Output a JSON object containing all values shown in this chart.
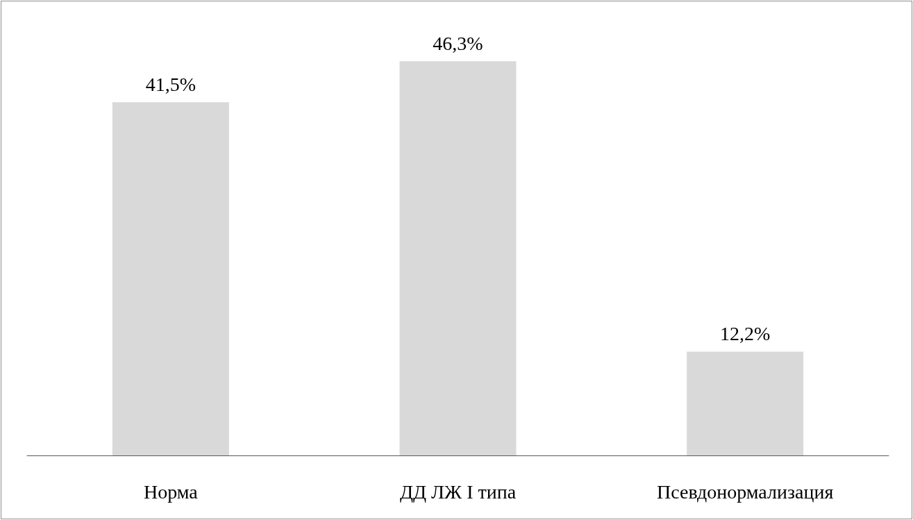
{
  "chart_data": {
    "type": "bar",
    "categories": [
      "Норма",
      "ДД ЛЖ I типа",
      "Псевдонормализация"
    ],
    "values": [
      41.5,
      46.3,
      12.2
    ],
    "value_labels": [
      "41,5%",
      "46,3%",
      "12,2%"
    ],
    "color": "#d9d9d9"
  }
}
